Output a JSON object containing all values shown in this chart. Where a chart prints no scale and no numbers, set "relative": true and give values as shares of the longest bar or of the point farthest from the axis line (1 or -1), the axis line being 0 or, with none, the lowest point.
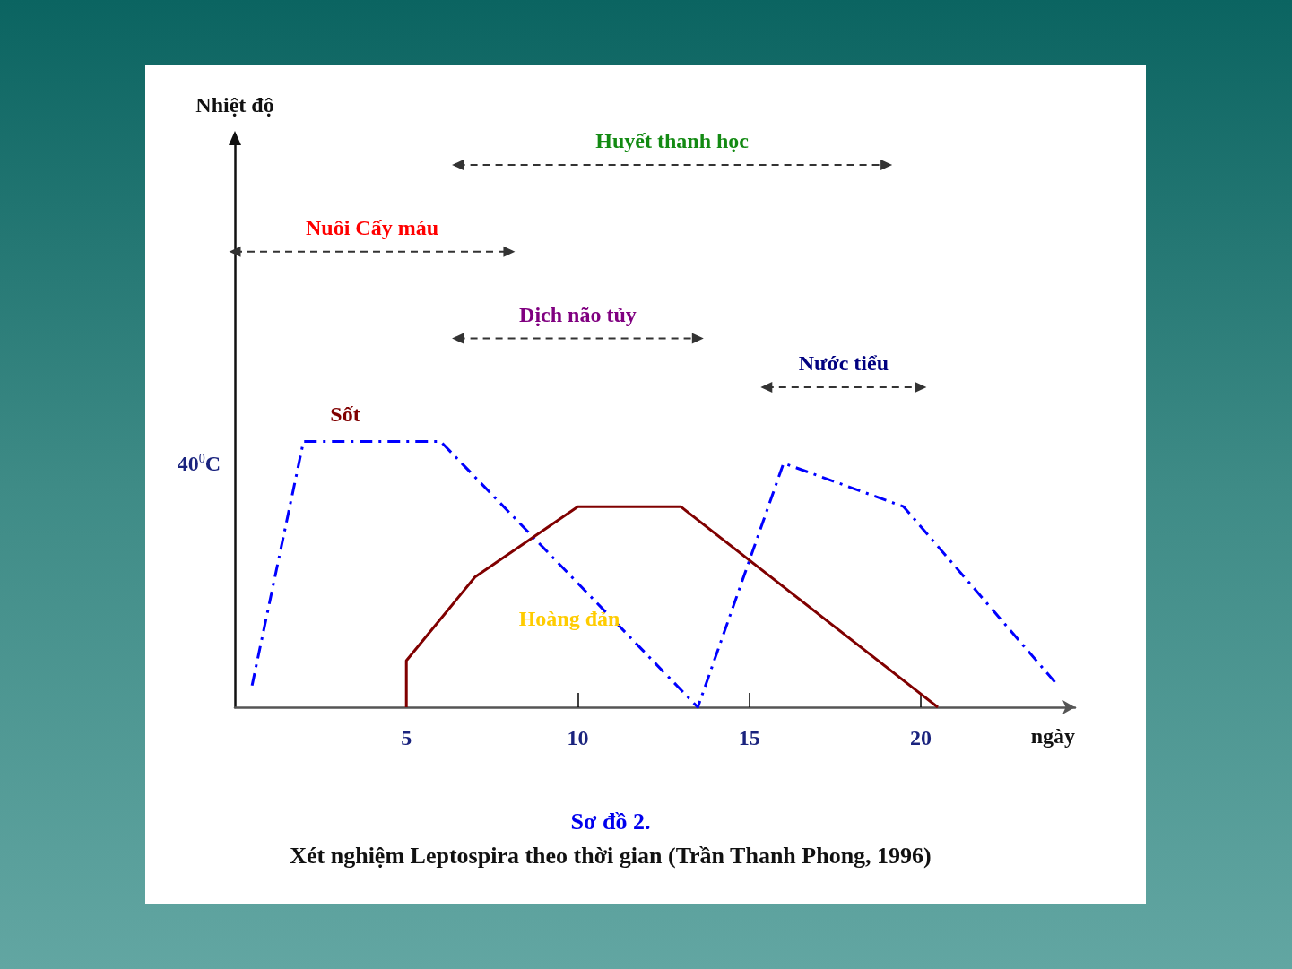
{
  "chart_data": {
    "type": "line",
    "title": "Sơ đồ 2.",
    "subtitle": "Xét nghiệm Leptospira theo thời gian (Trần Thanh Phong, 1996)",
    "xlabel": "ngày",
    "relative": true,
    "xlim": [
      0,
      24.5
    ],
    "xticks": [
      5,
      10,
      15,
      20
    ],
    "grid": false,
    "series": [
      {
        "color": "#0000ff",
        "line_style": "dashed",
        "x": [
          0.5,
          2,
          6,
          13.5,
          16,
          19.5,
          24
        ],
        "values": [
          0.04,
          0.49,
          0.49,
          0,
          0.45,
          0.37,
          0.04
        ]
      },
      {
        "color": "#800000",
        "line_style": "solid",
        "x": [
          5,
          5,
          7,
          10,
          13,
          20.5
        ],
        "values": [
          0,
          0.086,
          0.24,
          0.37,
          0.37,
          0
        ]
      },
      {
        "name": "Huyết thanh học",
        "marker": "triangle",
        "color": "#333333",
        "line_style": "dashed",
        "x": [
          6.5,
          19
        ],
        "values": [
          1,
          1
        ]
      },
      {
        "name": "Nuôi Cấy máu",
        "marker": "triangle",
        "color": "#333333",
        "line_style": "dashed",
        "x": [
          0,
          8
        ],
        "values": [
          0.84,
          0.84
        ]
      },
      {
        "name": "Dịch não tủy",
        "marker": "triangle",
        "color": "#333333",
        "line_style": "dashed",
        "x": [
          6.5,
          13.5
        ],
        "values": [
          0.68,
          0.68
        ]
      },
      {
        "name": "Nước tiểu",
        "marker": "triangle",
        "color": "#333333",
        "line_style": "dashed",
        "x": [
          15.5,
          20
        ],
        "values": [
          0.59,
          0.59
        ]
      }
    ],
    "annotations": [
      "Nhiệt độ",
      "40$^{0}$C",
      "Sốt",
      "Hoàng đản"
    ]
  }
}
